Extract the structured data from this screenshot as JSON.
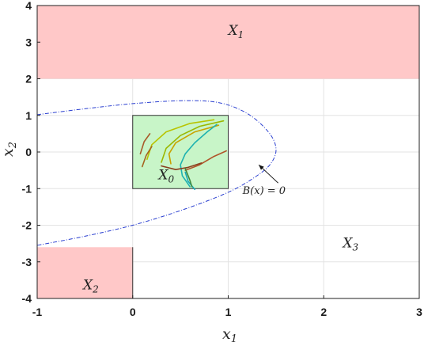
{
  "chart_data": {
    "type": "region-plot",
    "xlabel": "x",
    "xlabel_sub": "1",
    "ylabel": "x",
    "ylabel_sub": "2",
    "xlim": [
      -1,
      3
    ],
    "ylim": [
      -4,
      4
    ],
    "xticks": [
      -1,
      0,
      1,
      2,
      3
    ],
    "yticks": [
      -4,
      -3,
      -2,
      -1,
      0,
      1,
      2,
      3,
      4
    ],
    "grid": true,
    "colors": {
      "unsafe_fill": "#ffc8c8",
      "initial_fill": "#c8f5c8",
      "barrier_line": "#2a3fd0",
      "grid": "#e3e3e3"
    },
    "regions": [
      {
        "label": "X",
        "sub": "1",
        "x": [
          -1,
          3
        ],
        "y": [
          2,
          4
        ],
        "kind": "unsafe",
        "label_at": [
          1.0,
          3.2
        ]
      },
      {
        "label": "X",
        "sub": "2",
        "x": [
          -1,
          0
        ],
        "y": [
          -4,
          -2.6
        ],
        "kind": "unsafe",
        "label_at": [
          -0.52,
          -3.75
        ]
      },
      {
        "label": "X",
        "sub": "0",
        "x": [
          0,
          1
        ],
        "y": [
          -1,
          1
        ],
        "kind": "initial",
        "label_at": [
          0.27,
          -0.75
        ]
      },
      {
        "label": "X",
        "sub": "3",
        "kind": "label-only",
        "label_at": [
          2.2,
          -2.6
        ]
      }
    ],
    "barrier_annotation": {
      "text": "B(x) = 0",
      "text_at": [
        1.15,
        -1.15
      ],
      "arrow_to": [
        1.32,
        -0.35
      ]
    },
    "barrier_curve": [
      [
        -1,
        1.02
      ],
      [
        -0.5,
        1.18
      ],
      [
        0,
        1.32
      ],
      [
        0.5,
        1.4
      ],
      [
        0.9,
        1.35
      ],
      [
        1.2,
        1.05
      ],
      [
        1.42,
        0.55
      ],
      [
        1.5,
        0.1
      ],
      [
        1.45,
        -0.3
      ],
      [
        1.3,
        -0.65
      ],
      [
        1.0,
        -1.1
      ],
      [
        0.5,
        -1.6
      ],
      [
        0,
        -2.0
      ],
      [
        -0.5,
        -2.3
      ],
      [
        -1,
        -2.55
      ]
    ],
    "trajectories": [
      {
        "color": "#b8c400",
        "points": [
          [
            0.15,
            -0.2
          ],
          [
            0.2,
            0.2
          ],
          [
            0.35,
            0.55
          ],
          [
            0.6,
            0.78
          ],
          [
            0.85,
            0.88
          ]
        ]
      },
      {
        "color": "#9ab800",
        "points": [
          [
            0.3,
            -0.28
          ],
          [
            0.35,
            0.1
          ],
          [
            0.5,
            0.45
          ],
          [
            0.7,
            0.7
          ],
          [
            0.95,
            0.85
          ]
        ]
      },
      {
        "color": "#c9a200",
        "points": [
          [
            0.4,
            -0.32
          ],
          [
            0.38,
            -0.05
          ],
          [
            0.45,
            0.25
          ],
          [
            0.65,
            0.55
          ],
          [
            0.9,
            0.73
          ]
        ]
      },
      {
        "color": "#a85a2a",
        "points": [
          [
            0.08,
            -0.05
          ],
          [
            0.12,
            0.28
          ],
          [
            0.18,
            0.5
          ]
        ]
      },
      {
        "color": "#a5631f",
        "points": [
          [
            0.1,
            -0.4
          ],
          [
            0.14,
            -0.1
          ],
          [
            0.2,
            0.15
          ]
        ]
      },
      {
        "color": "#1db2b0",
        "points": [
          [
            0.6,
            -0.95
          ],
          [
            0.52,
            -0.65
          ],
          [
            0.5,
            -0.35
          ],
          [
            0.55,
            -0.05
          ],
          [
            0.65,
            0.25
          ],
          [
            0.78,
            0.55
          ],
          [
            0.88,
            0.75
          ]
        ]
      },
      {
        "color": "#1aa7b8",
        "points": [
          [
            0.65,
            -1.02
          ],
          [
            0.58,
            -0.8
          ],
          [
            0.55,
            -0.55
          ]
        ]
      },
      {
        "color": "#b0552a",
        "points": [
          [
            0.55,
            -0.5
          ],
          [
            0.7,
            -0.35
          ],
          [
            0.85,
            -0.12
          ],
          [
            0.98,
            0.03
          ]
        ]
      },
      {
        "color": "#8a4020",
        "points": [
          [
            0.3,
            -0.38
          ],
          [
            0.45,
            -0.48
          ],
          [
            0.58,
            -0.42
          ],
          [
            0.72,
            -0.3
          ]
        ]
      },
      {
        "color": "#3e8a3e",
        "points": [
          [
            0.55,
            -0.45
          ],
          [
            0.6,
            -0.78
          ],
          [
            0.62,
            -0.95
          ]
        ]
      }
    ]
  }
}
